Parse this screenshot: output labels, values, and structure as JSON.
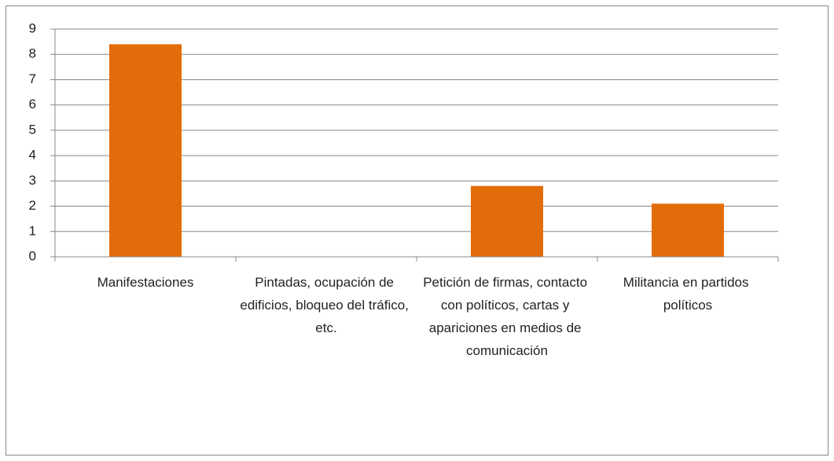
{
  "chart_data": {
    "type": "bar",
    "categories": [
      "Manifestaciones",
      "Pintadas, ocupación de edificios, bloqueo del tráfico, etc.",
      "Petición de firmas, contacto con políticos, cartas y apariciones en medios de comunicación",
      "Militancia en partidos políticos"
    ],
    "values": [
      8.4,
      0,
      2.8,
      2.1
    ],
    "color": "#e36c0a",
    "ylim": [
      0,
      9
    ],
    "yticks": [
      0,
      1,
      2,
      3,
      4,
      5,
      6,
      7,
      8,
      9
    ],
    "grid": true
  }
}
